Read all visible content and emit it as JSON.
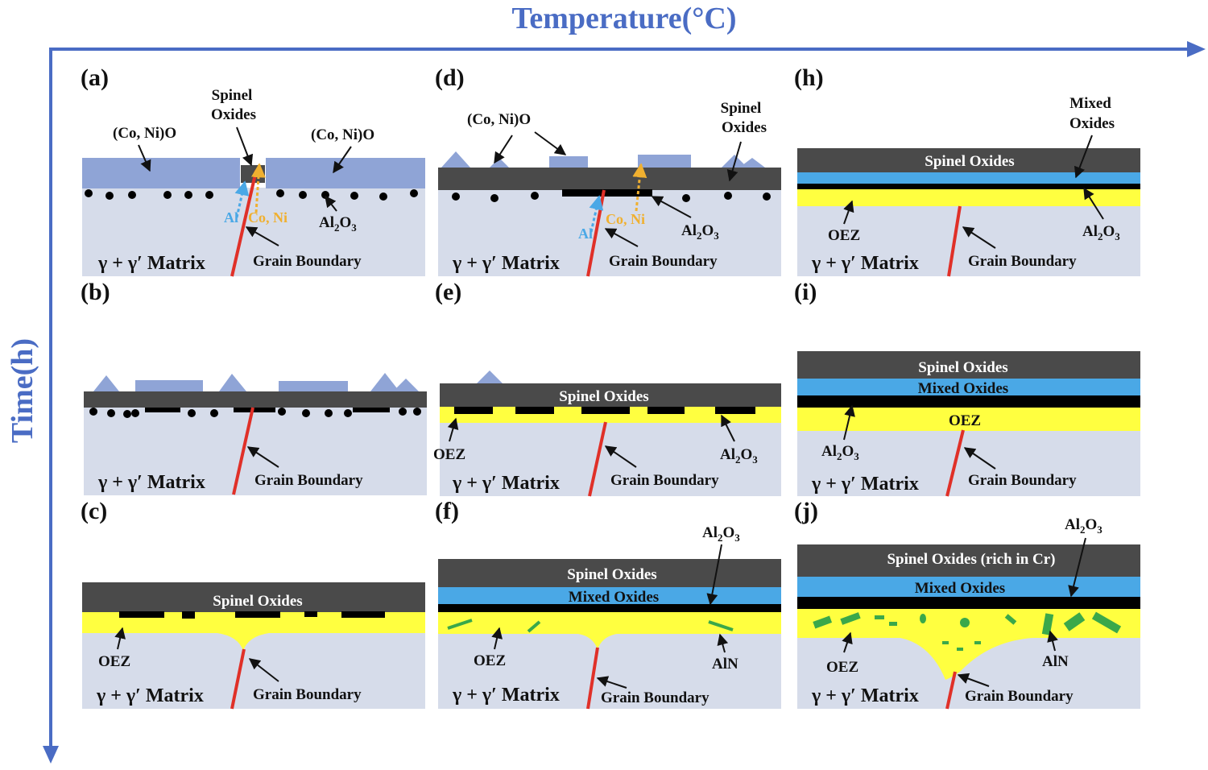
{
  "axes": {
    "x_title": "Temperature(°C)",
    "y_title": "Time(h)"
  },
  "colors": {
    "axis": "#4a6cc4",
    "matrix": "#d6dcea",
    "nio": "#8fa4d6",
    "spinel": "#4a4a4a",
    "mixed": "#4aa8e6",
    "oez": "#ffff40",
    "alumina": "#000000",
    "aln": "#3aa84a",
    "grain_boundary": "#e03028"
  },
  "labels": {
    "nio": "(Co, Ni)O",
    "spinel_line1": "Spinel",
    "spinel_line2": "Oxides",
    "spinel_oxides": "Spinel Oxides",
    "spinel_rich": "Spinel Oxides (rich in Cr)",
    "mixed_line1": "Mixed",
    "mixed_line2": "Oxides",
    "mixed_oxides": "Mixed Oxides",
    "oez": "OEZ",
    "al": "Al",
    "coni": "Co, Ni",
    "al2o3_main": "Al",
    "al2o3_sub2": "2",
    "al2o3_o": "O",
    "al2o3_sub3": "3",
    "aln": "AlN",
    "grain_boundary": "Grain Boundary",
    "matrix": "γ + γ′ Matrix"
  },
  "panels": [
    {
      "id": "a",
      "label": "(a)"
    },
    {
      "id": "b",
      "label": "(b)"
    },
    {
      "id": "c",
      "label": "(c)"
    },
    {
      "id": "d",
      "label": "(d)"
    },
    {
      "id": "e",
      "label": "(e)"
    },
    {
      "id": "f",
      "label": "(f)"
    },
    {
      "id": "h",
      "label": "(h)"
    },
    {
      "id": "i",
      "label": "(i)"
    },
    {
      "id": "j",
      "label": "(j)"
    }
  ]
}
